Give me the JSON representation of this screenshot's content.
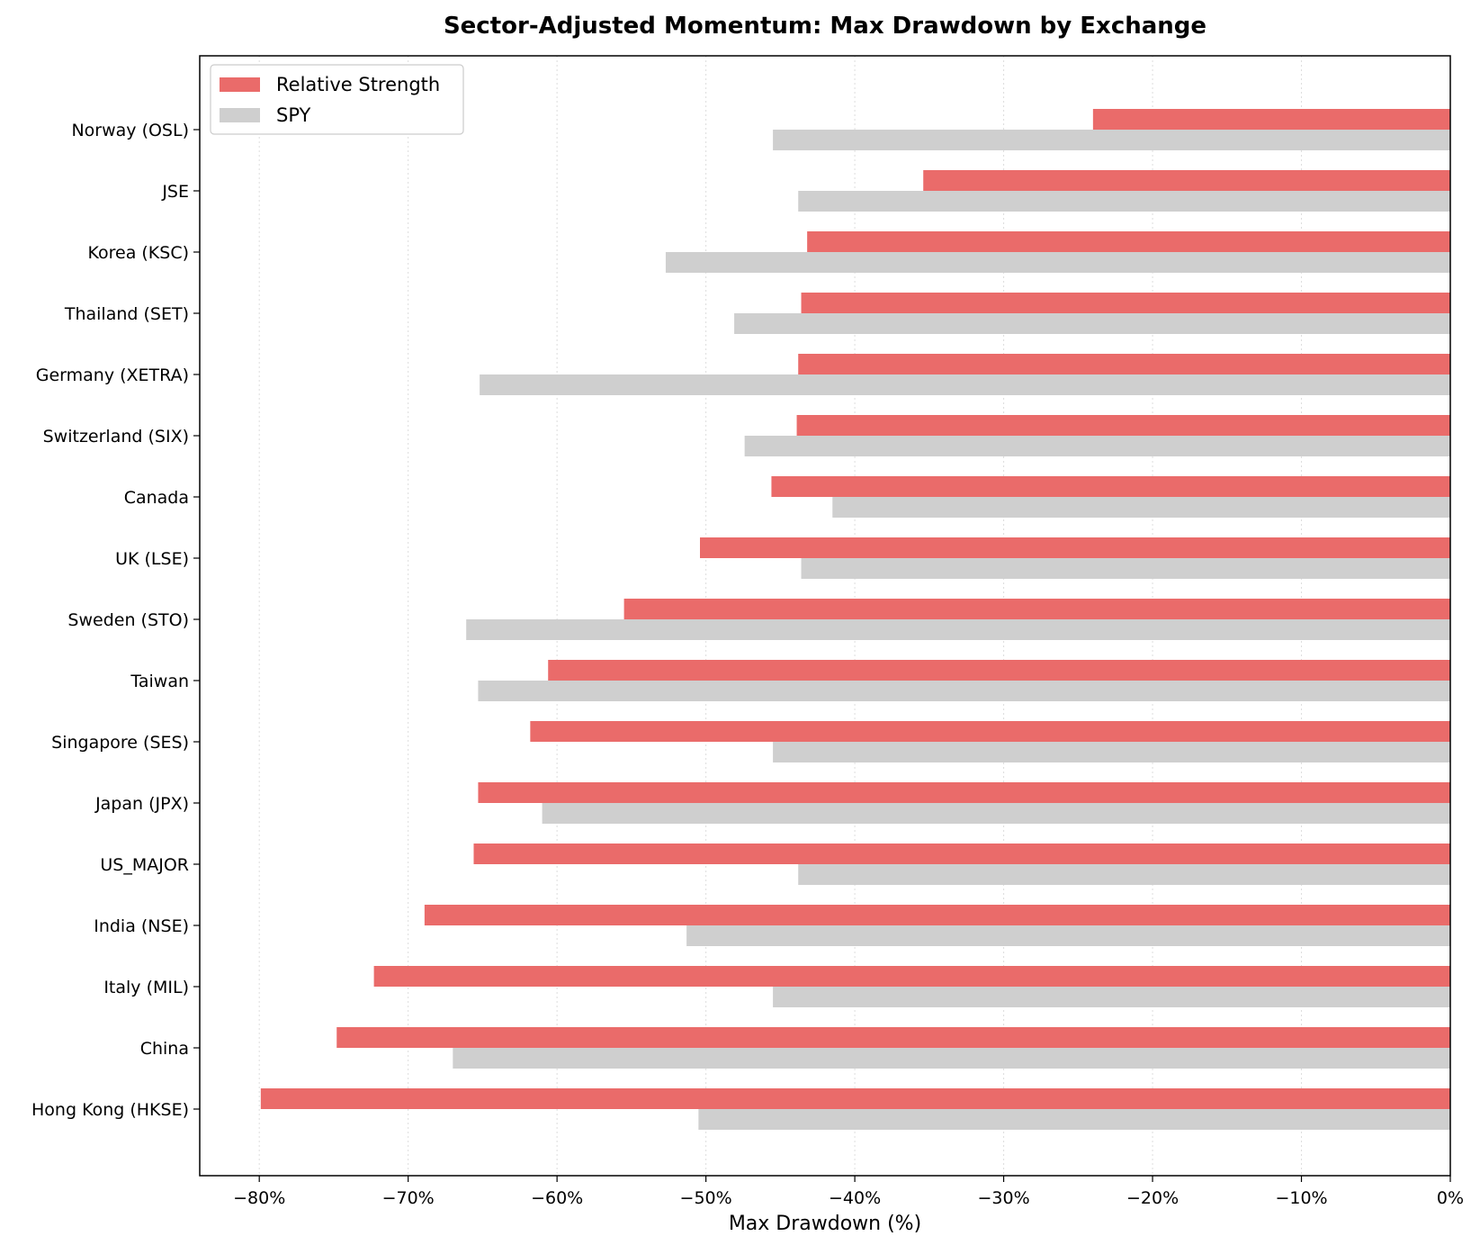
{
  "chart_data": {
    "type": "bar",
    "orientation": "horizontal",
    "title": "Sector-Adjusted Momentum: Max Drawdown by Exchange",
    "xlabel": "Max Drawdown (%)",
    "ylabel": "",
    "xlim": [
      -84,
      0
    ],
    "x_ticks": [
      -80,
      -70,
      -60,
      -50,
      -40,
      -30,
      -20,
      -10,
      0
    ],
    "x_tick_labels": [
      "−80%",
      "−70%",
      "−60%",
      "−50%",
      "−40%",
      "−30%",
      "−20%",
      "−10%",
      "0%"
    ],
    "grid": "x-dotted",
    "legend_position": "top-left",
    "categories": [
      "Norway (OSL)",
      "JSE",
      "Korea (KSC)",
      "Thailand (SET)",
      "Germany (XETRA)",
      "Switzerland (SIX)",
      "Canada",
      "UK (LSE)",
      "Sweden (STO)",
      "Taiwan",
      "Singapore (SES)",
      "Japan (JPX)",
      "US_MAJOR",
      "India (NSE)",
      "Italy (MIL)",
      "China",
      "Hong Kong (HKSE)"
    ],
    "series": [
      {
        "name": "Relative Strength",
        "color": "#ea6b6a",
        "values": [
          -24.0,
          -35.4,
          -43.2,
          -43.6,
          -43.8,
          -43.9,
          -45.6,
          -50.4,
          -55.5,
          -60.6,
          -61.8,
          -65.3,
          -65.6,
          -68.9,
          -72.3,
          -74.8,
          -79.9
        ]
      },
      {
        "name": "SPY",
        "color": "#cfcfcf",
        "values": [
          -45.5,
          -43.8,
          -52.7,
          -48.1,
          -65.2,
          -47.4,
          -41.5,
          -43.6,
          -66.1,
          -65.3,
          -45.5,
          -61.0,
          -43.8,
          -51.3,
          -45.5,
          -67.0,
          -50.5
        ]
      }
    ]
  }
}
